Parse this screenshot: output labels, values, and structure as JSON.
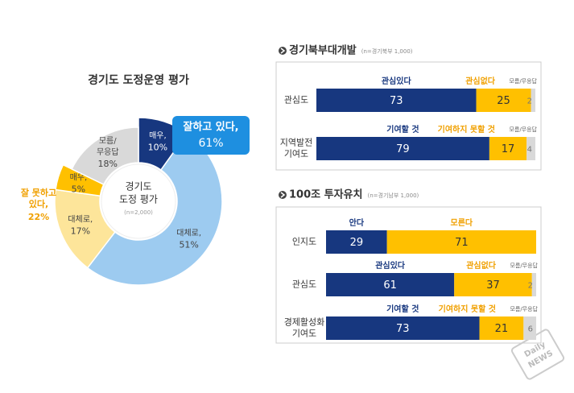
{
  "chart_data": [
    {
      "type": "pie",
      "title": "경기도 도정운영 평가",
      "center_label": [
        "경기도",
        "도정 평가"
      ],
      "center_note": "(n=2,000)",
      "groups": [
        {
          "label": [
            "잘하고 있다,"
          ],
          "value": 61,
          "value_label": "61%",
          "slices": [
            {
              "name": [
                "매우,"
              ],
              "value": 10,
              "value_label": "10%",
              "color": "#17377f"
            },
            {
              "name": [
                "대체로,"
              ],
              "value": 51,
              "value_label": "51%",
              "color": "#9dcbf0"
            }
          ]
        },
        {
          "label": [
            "잘 못하고",
            "있다,"
          ],
          "value": 22,
          "value_label": "22%",
          "slices": [
            {
              "name": [
                "대체로,"
              ],
              "value": 17,
              "value_label": "17%",
              "color": "#fde59a"
            },
            {
              "name": [
                "매우,"
              ],
              "value": 5,
              "value_label": "5%",
              "color": "#ffc000"
            }
          ]
        },
        {
          "slices": [
            {
              "name": [
                "모름/",
                "무응답"
              ],
              "value": 18,
              "value_label": "18%",
              "color": "#d9d9d9"
            }
          ]
        }
      ]
    },
    {
      "type": "stacked-bar",
      "title": "경기북부대개발",
      "note": "(n=경기북부 1,000)",
      "xlim": [
        0,
        100
      ],
      "rows": [
        {
          "label": [
            "관심도"
          ],
          "segments": [
            {
              "name": "관심있다",
              "value": 73,
              "color": "#17377f"
            },
            {
              "name": "관심없다",
              "value": 25,
              "color": "#ffc000"
            },
            {
              "name": "모름/무응답",
              "value": 2,
              "color": "#d9d9d9"
            }
          ]
        },
        {
          "label": [
            "지역발전",
            "기여도"
          ],
          "segments": [
            {
              "name": "기여할 것",
              "value": 79,
              "color": "#17377f"
            },
            {
              "name": "기여하지 못할 것",
              "value": 17,
              "color": "#ffc000"
            },
            {
              "name": "모름/무응답",
              "value": 4,
              "color": "#d9d9d9"
            }
          ]
        }
      ]
    },
    {
      "type": "stacked-bar",
      "title": "100조 투자유치",
      "note": "(n=경기남부 1,000)",
      "xlim": [
        0,
        100
      ],
      "rows": [
        {
          "label": [
            "인지도"
          ],
          "segments": [
            {
              "name": "안다",
              "value": 29,
              "color": "#17377f"
            },
            {
              "name": "모른다",
              "value": 71,
              "color": "#ffc000"
            }
          ]
        },
        {
          "label": [
            "관심도"
          ],
          "segments": [
            {
              "name": "관심있다",
              "value": 61,
              "color": "#17377f"
            },
            {
              "name": "관심없다",
              "value": 37,
              "color": "#ffc000"
            },
            {
              "name": "모름/무응답",
              "value": 2,
              "color": "#d9d9d9"
            }
          ]
        },
        {
          "label": [
            "경제활성화",
            "기여도"
          ],
          "segments": [
            {
              "name": "기여할 것",
              "value": 73,
              "color": "#17377f"
            },
            {
              "name": "기여하지 못할 것",
              "value": 21,
              "color": "#ffc000"
            },
            {
              "name": "모름/무응답",
              "value": 6,
              "color": "#d9d9d9"
            }
          ]
        }
      ]
    }
  ],
  "watermark": [
    "Daily",
    "NEWS"
  ]
}
